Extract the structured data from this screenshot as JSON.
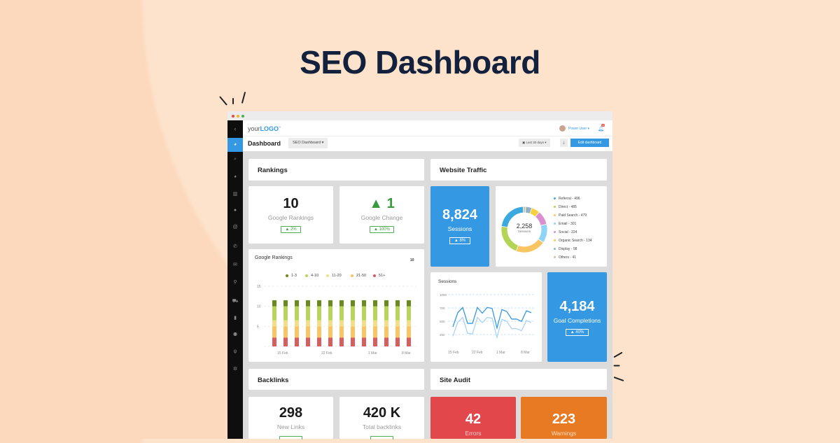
{
  "page_title": "SEO Dashboard",
  "header": {
    "logo_prefix": "your",
    "logo_main": "LOGO",
    "logo_tm": "™",
    "user": "Power User ▾",
    "notif_count": "10"
  },
  "subheader": {
    "title": "Dashboard",
    "dashboard_select": "SEO Dashboard ▾",
    "date_range": "Last 30 days ▾",
    "edit_label": "Edit dashboard"
  },
  "sidebar": {
    "icons": [
      "back-icon",
      "dashboard-icon",
      "search-icon",
      "pie-chart-icon",
      "bar-chart-icon",
      "chat-icon",
      "at-icon",
      "phone-icon",
      "mail-icon",
      "location-icon",
      "cart-icon",
      "document-icon",
      "user-icon",
      "plug-icon",
      "gear-icon"
    ]
  },
  "rankings": {
    "title": "Rankings",
    "google_rankings": {
      "value": "10",
      "label": "Google Rankings",
      "change": "▲ 2%"
    },
    "google_change": {
      "value": "▲ 1",
      "label": "Google Change",
      "change": "▲ 100%"
    }
  },
  "traffic": {
    "title": "Website Traffic",
    "sessions": {
      "value": "8,824",
      "label": "Sessions",
      "change": "▲ 8%"
    },
    "goal": {
      "value": "4,184",
      "label": "Goal Completions",
      "change": "▲ 40%"
    }
  },
  "backlinks": {
    "title": "Backlinks",
    "new_links": {
      "value": "298",
      "label": "New Links"
    },
    "total": {
      "value": "420 K",
      "label": "Total backlinks"
    }
  },
  "site_audit": {
    "title": "Site Audit",
    "errors": {
      "value": "42",
      "label": "Errors"
    },
    "warnings": {
      "value": "223",
      "label": "Warnings"
    }
  },
  "colors": {
    "accent": "#3498e2",
    "error": "#e2474c",
    "warning": "#e87a24",
    "positive": "#4caf50"
  },
  "chart_data": [
    {
      "type": "bar",
      "stacked": true,
      "title": "Google Rankings",
      "corner_value": "10",
      "legend": [
        "1-3",
        "4-10",
        "11-20",
        "21-50",
        "51+"
      ],
      "legend_placement": "top",
      "colors": [
        "#6a8a1f",
        "#b7d65b",
        "#f4de88",
        "#f9c462",
        "#d95c5f"
      ],
      "bars": 13,
      "x_tick_labels": [
        "15 Feb",
        "22 Feb",
        "1 Mar",
        "8 Mar"
      ],
      "y_ticks": [
        "15",
        "10",
        "5"
      ],
      "ylim": [
        0,
        15
      ],
      "series": [
        {
          "name": "51+",
          "values": [
            2.2,
            2.2,
            2.2,
            2.2,
            2.2,
            2.2,
            2.2,
            2.2,
            2.2,
            2.2,
            2.2,
            2.2,
            2.2
          ]
        },
        {
          "name": "21-50",
          "values": [
            2.8,
            2.8,
            2.8,
            2.8,
            2.8,
            2.8,
            2.8,
            2.8,
            2.8,
            2.8,
            2.8,
            2.8,
            2.8
          ]
        },
        {
          "name": "11-20",
          "values": [
            1.5,
            1.5,
            1.5,
            1.5,
            1.5,
            1.5,
            1.5,
            1.5,
            1.5,
            1.5,
            1.5,
            1.5,
            1.5
          ]
        },
        {
          "name": "4-10",
          "values": [
            3.5,
            3.5,
            3.5,
            3.5,
            3.5,
            3.5,
            3.5,
            3.5,
            3.5,
            3.5,
            3.5,
            3.5,
            3.5
          ]
        },
        {
          "name": "1-3",
          "values": [
            1.5,
            1.5,
            1.5,
            1.5,
            1.5,
            1.5,
            1.5,
            1.5,
            1.5,
            1.5,
            1.5,
            1.5,
            1.5
          ]
        }
      ]
    },
    {
      "type": "pie",
      "donut": true,
      "center_value": "2,258",
      "center_label": "Sessions",
      "slices": [
        {
          "label": "Referral",
          "value": 496,
          "color": "#3ba8e0"
        },
        {
          "label": "Direct",
          "value": 485,
          "color": "#b4d455"
        },
        {
          "label": "Paid Search",
          "value": 479,
          "color": "#f9c462"
        },
        {
          "label": "Email",
          "value": 301,
          "color": "#8fd3f7"
        },
        {
          "label": "Social",
          "value": 224,
          "color": "#d98ed0"
        },
        {
          "label": "Organic Search",
          "value": 134,
          "color": "#f5d03f"
        },
        {
          "label": "Display",
          "value": 98,
          "color": "#8fb3c4"
        },
        {
          "label": "Others",
          "value": 41,
          "color": "#cfc3a6"
        }
      ],
      "legend_placement": "right"
    },
    {
      "type": "line",
      "title": "Sessions",
      "y_ticks": [
        1000,
        700,
        500,
        250
      ],
      "x_tick_labels": [
        "15 Feb",
        "22 Feb",
        "1 Mar",
        "8 Mar"
      ],
      "grid": true,
      "series": [
        {
          "color": "#3498e2",
          "values": [
            395,
            629,
            710,
            460,
            460,
            710,
            621,
            710,
            693,
            373,
            675,
            646,
            532,
            532,
            496,
            657,
            629
          ]
        },
        {
          "color": "#a9d3f5",
          "values": [
            220,
            482,
            557,
            272,
            263,
            557,
            473,
            557,
            546,
            197,
            529,
            496,
            360,
            360,
            320,
            511,
            473
          ]
        }
      ]
    }
  ]
}
